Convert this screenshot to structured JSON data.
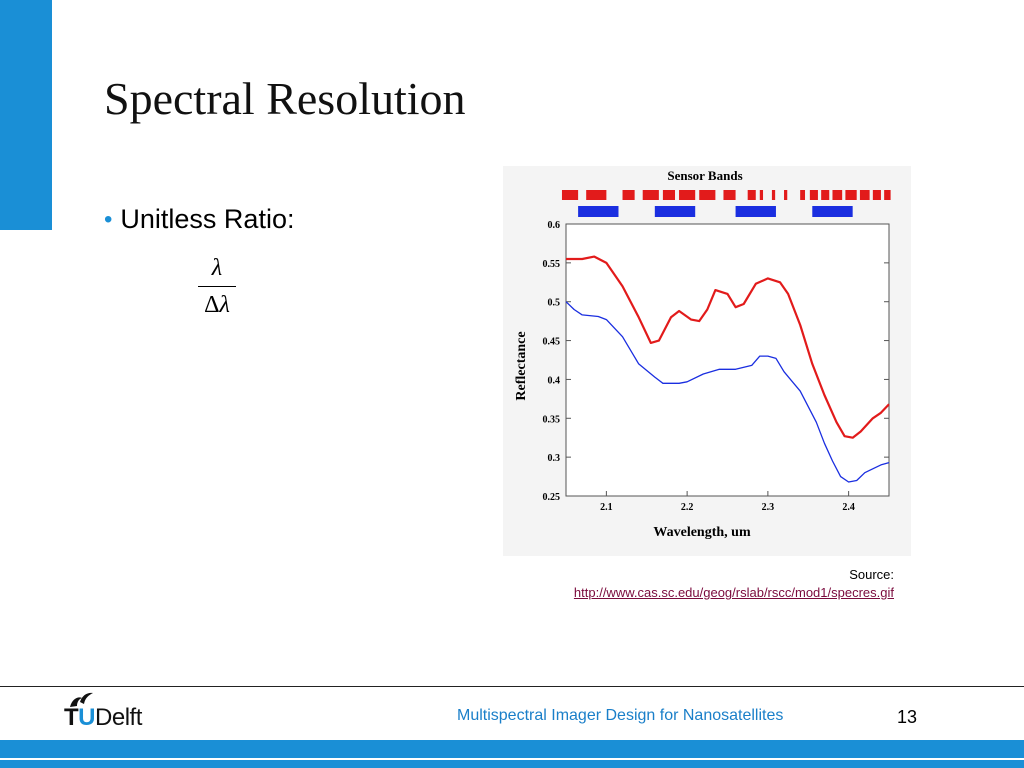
{
  "slide": {
    "title": "Spectral Resolution",
    "bullet": "Unitless Ratio:",
    "formula": {
      "numerator": "λ",
      "delta": "Δ",
      "denominator_symbol": "λ"
    },
    "source_label": "Source:",
    "source_url": "http://www.cas.sc.edu/geog/rslab/rscc/mod1/specres.gif",
    "footer_text": "Multispectral Imager Design for Nanosatellites",
    "page_number": "13",
    "logo": {
      "t": "T",
      "u": "U",
      "delft": "Delft"
    },
    "colors": {
      "accent": "#1a8fd6",
      "link": "#7a0a3c"
    }
  },
  "chart_data": {
    "type": "line",
    "title": "Sensor Bands",
    "xlabel": "Wavelength, um",
    "ylabel": "Reflectance",
    "xlim": [
      2.05,
      2.45
    ],
    "ylim": [
      0.25,
      0.6
    ],
    "x_ticks": [
      "2.1",
      "2.2",
      "2.3",
      "2.4"
    ],
    "y_ticks": [
      "0.25",
      "0.3",
      "0.35",
      "0.4",
      "0.45",
      "0.5",
      "0.55",
      "0.6"
    ],
    "grid": false,
    "series": [
      {
        "color": "#e21b1b",
        "x": [
          2.05,
          2.07,
          2.085,
          2.1,
          2.12,
          2.14,
          2.155,
          2.165,
          2.18,
          2.19,
          2.205,
          2.215,
          2.225,
          2.235,
          2.25,
          2.26,
          2.27,
          2.285,
          2.3,
          2.315,
          2.325,
          2.34,
          2.355,
          2.37,
          2.385,
          2.395,
          2.405,
          2.415,
          2.43,
          2.44,
          2.45
        ],
        "y": [
          0.555,
          0.555,
          0.558,
          0.55,
          0.52,
          0.48,
          0.447,
          0.45,
          0.48,
          0.488,
          0.477,
          0.475,
          0.49,
          0.515,
          0.51,
          0.493,
          0.497,
          0.523,
          0.53,
          0.525,
          0.51,
          0.47,
          0.42,
          0.38,
          0.345,
          0.327,
          0.325,
          0.333,
          0.35,
          0.357,
          0.368
        ]
      },
      {
        "color": "#1a2ee0",
        "x": [
          2.05,
          2.06,
          2.07,
          2.09,
          2.1,
          2.12,
          2.14,
          2.16,
          2.17,
          2.19,
          2.2,
          2.22,
          2.24,
          2.26,
          2.28,
          2.29,
          2.3,
          2.31,
          2.32,
          2.34,
          2.36,
          2.37,
          2.38,
          2.39,
          2.4,
          2.41,
          2.42,
          2.43,
          2.44,
          2.45
        ],
        "y": [
          0.5,
          0.49,
          0.483,
          0.481,
          0.477,
          0.455,
          0.42,
          0.403,
          0.395,
          0.395,
          0.397,
          0.407,
          0.413,
          0.413,
          0.418,
          0.43,
          0.43,
          0.427,
          0.41,
          0.385,
          0.345,
          0.318,
          0.295,
          0.275,
          0.268,
          0.27,
          0.28,
          0.285,
          0.29,
          0.293
        ]
      }
    ],
    "sensor_bands": {
      "red": [
        [
          2.045,
          2.065
        ],
        [
          2.075,
          2.1
        ],
        [
          2.12,
          2.135
        ],
        [
          2.145,
          2.165
        ],
        [
          2.17,
          2.185
        ],
        [
          2.19,
          2.21
        ],
        [
          2.215,
          2.235
        ],
        [
          2.245,
          2.26
        ],
        [
          2.275,
          2.285
        ],
        [
          2.29,
          2.294
        ],
        [
          2.305,
          2.309
        ],
        [
          2.32,
          2.324
        ],
        [
          2.34,
          2.346
        ],
        [
          2.352,
          2.362
        ],
        [
          2.366,
          2.376
        ],
        [
          2.38,
          2.392
        ],
        [
          2.396,
          2.41
        ],
        [
          2.414,
          2.426
        ],
        [
          2.43,
          2.44
        ],
        [
          2.444,
          2.452
        ]
      ],
      "blue": [
        [
          2.065,
          2.115
        ],
        [
          2.16,
          2.21
        ],
        [
          2.26,
          2.31
        ],
        [
          2.355,
          2.405
        ]
      ]
    }
  }
}
